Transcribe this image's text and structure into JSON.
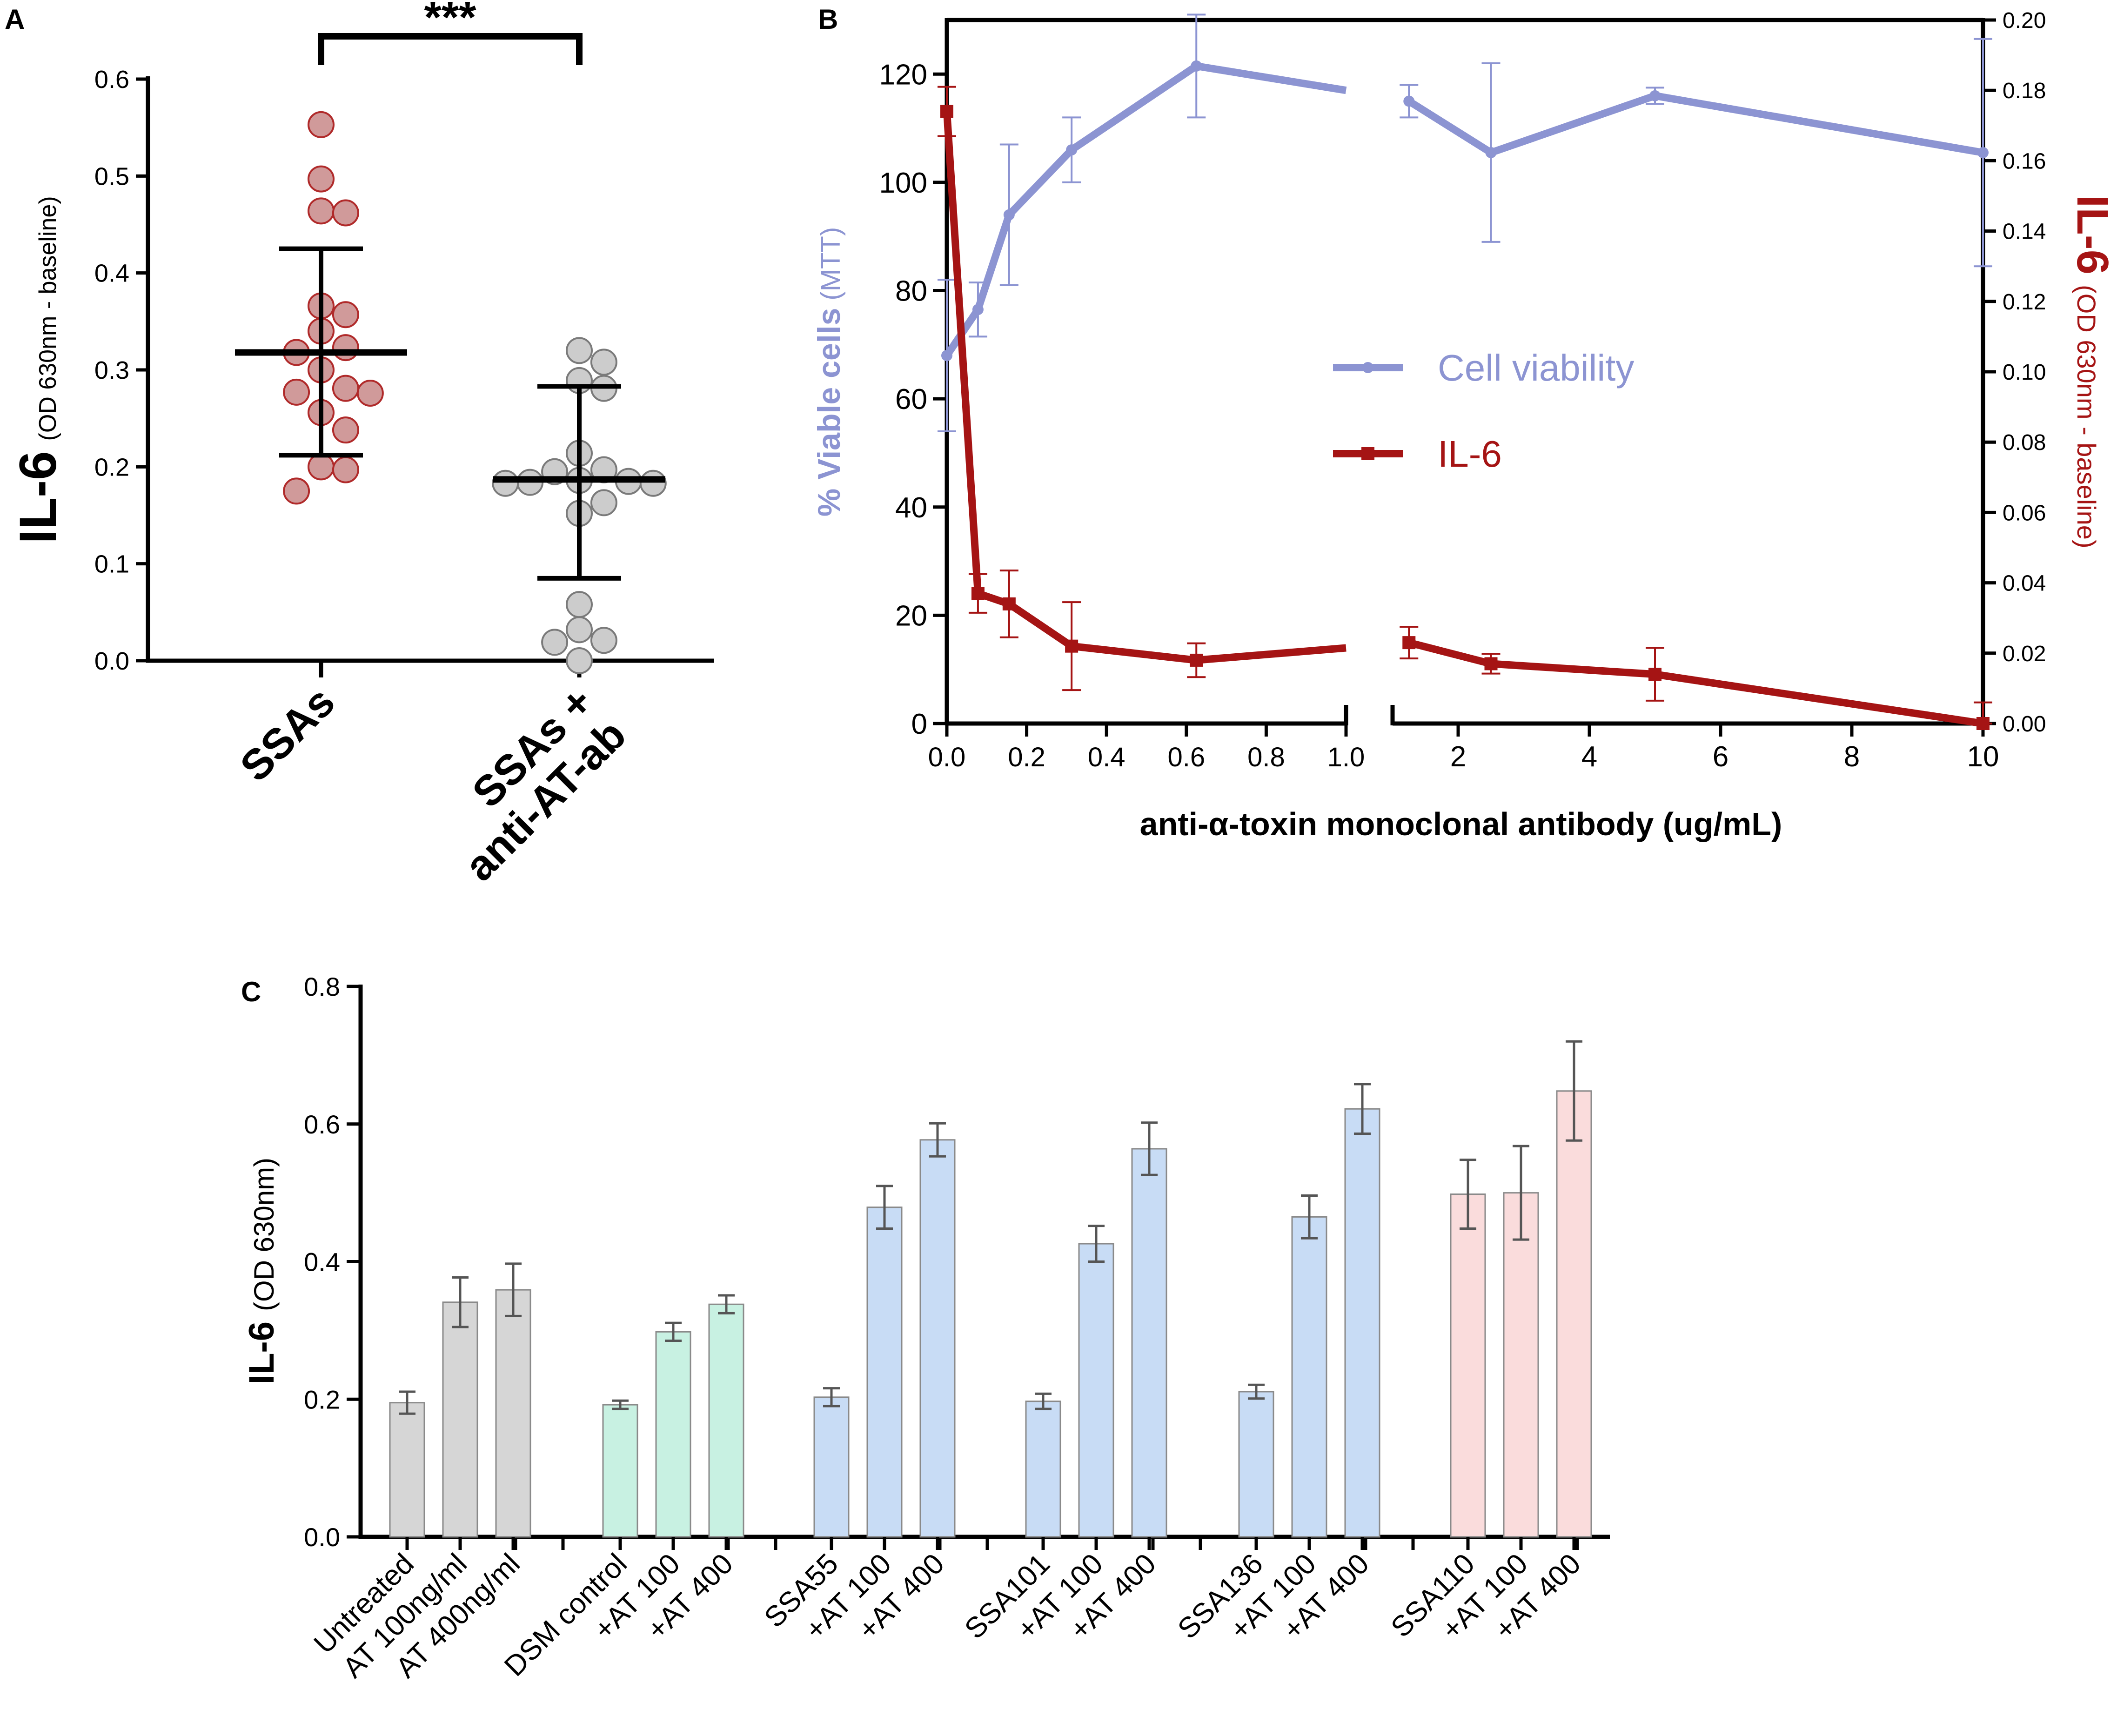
{
  "chart_data": [
    {
      "panel": "A",
      "type": "scatter",
      "title": "",
      "ylabel_main": "IL-6",
      "ylabel_sub": "(OD 630nm - baseline)",
      "ylim": [
        0.0,
        0.6
      ],
      "yticks": [
        "0.0",
        "0.1",
        "0.2",
        "0.3",
        "0.4",
        "0.5",
        "0.6"
      ],
      "significance": "***",
      "reference_line_y": 0.0,
      "groups": [
        {
          "name": "SSAs",
          "label_lines": [
            "SSAs"
          ],
          "fill": "#d09a9a",
          "stroke": "#b02a2a",
          "mean": 0.318,
          "sd_low": 0.212,
          "sd_high": 0.425,
          "points": [
            0.553,
            0.497,
            0.464,
            0.462,
            0.366,
            0.357,
            0.34,
            0.323,
            0.318,
            0.3,
            0.281,
            0.277,
            0.276,
            0.256,
            0.238,
            0.2,
            0.197,
            0.175
          ]
        },
        {
          "name": "SSAs + anti-AT-ab",
          "label_lines": [
            "SSAs +",
            "anti-AT-ab"
          ],
          "fill": "#cccccc",
          "stroke": "#7a7a7a",
          "mean": 0.187,
          "sd_low": 0.085,
          "sd_high": 0.283,
          "points": [
            0.32,
            0.308,
            0.289,
            0.281,
            0.214,
            0.197,
            0.195,
            0.185,
            0.183,
            0.184,
            0.186,
            0.183,
            0.163,
            0.152,
            0.058,
            0.032,
            0.021,
            0.019,
            0.0
          ]
        }
      ]
    },
    {
      "panel": "B",
      "type": "line",
      "title": "",
      "xlabel": "anti-α-toxin monoclonal antibody (ug/mL)",
      "ylabel_left_bold": "% Viable cells",
      "ylabel_left_sub": "(MTT)",
      "ylabel_right_bold": "IL-6",
      "ylabel_right_sub": "(OD 630nm - baseline)",
      "ylim_left": [
        0,
        130
      ],
      "ylim_right": [
        0,
        0.2
      ],
      "yticks_left": [
        "0",
        "20",
        "40",
        "60",
        "80",
        "100",
        "120"
      ],
      "yticks_right": [
        "0.00",
        "0.02",
        "0.04",
        "0.06",
        "0.08",
        "0.10",
        "0.12",
        "0.14",
        "0.16",
        "0.18",
        "0.20"
      ],
      "x_segment1_range": [
        0.0,
        1.0
      ],
      "x_segment1_ticks": [
        "0.0",
        "0.2",
        "0.4",
        "0.6",
        "0.8",
        "1.0"
      ],
      "x_segment2_range": [
        1.0,
        10
      ],
      "x_segment2_ticks": [
        "2",
        "4",
        "6",
        "8",
        "10"
      ],
      "legend_position": "center-right",
      "series": [
        {
          "name": "Cell viability",
          "axis": "left",
          "color": "#8c94d2",
          "marker": "circle",
          "x": [
            0.0,
            0.078,
            0.156,
            0.3125,
            0.625,
            1.25,
            2.5,
            5.0,
            10.0
          ],
          "y": [
            68,
            76.5,
            94,
            106,
            121.5,
            115,
            105.5,
            116,
            105.5
          ],
          "err": [
            14,
            5,
            13,
            6,
            9.5,
            3,
            16.5,
            1.5,
            21
          ],
          "gap_point_left": 117
        },
        {
          "name": "IL-6",
          "axis": "right",
          "color": "#a51414",
          "marker": "square",
          "x": [
            0.0,
            0.078,
            0.156,
            0.3125,
            0.625,
            1.25,
            2.5,
            5.0,
            10.0
          ],
          "y": [
            0.174,
            0.037,
            0.034,
            0.022,
            0.018,
            0.023,
            0.017,
            0.014,
            0.0
          ],
          "err": [
            0.007,
            0.0055,
            0.0095,
            0.0125,
            0.0048,
            0.0045,
            0.0028,
            0.0075,
            0.006
          ],
          "gap_point_left": 0.0215
        }
      ]
    },
    {
      "panel": "C",
      "type": "bar",
      "title": "",
      "ylabel_main": "IL-6",
      "ylabel_sub": "(OD 630nm)",
      "ylim": [
        0.0,
        0.8
      ],
      "yticks": [
        "0.0",
        "0.2",
        "0.4",
        "0.6",
        "0.8"
      ],
      "groups": [
        {
          "name": "Untreated",
          "bar_color": "#d6d6d6",
          "bars": [
            {
              "label": "Untreated",
              "value": 0.195,
              "err": 0.016
            },
            {
              "label": "AT 100ng/ml",
              "value": 0.341,
              "err": 0.036
            },
            {
              "label": "AT 400ng/ml",
              "value": 0.359,
              "err": 0.038
            }
          ]
        },
        {
          "name": "DSM control",
          "bar_color": "#c8f1e2",
          "bars": [
            {
              "label": "DSM control",
              "value": 0.192,
              "err": 0.006
            },
            {
              "label": "+AT 100",
              "value": 0.298,
              "err": 0.013
            },
            {
              "label": "+AT 400",
              "value": 0.338,
              "err": 0.013
            }
          ]
        },
        {
          "name": "SSA55",
          "bar_color": "#c8dcf5",
          "bars": [
            {
              "label": "SSA55",
              "value": 0.203,
              "err": 0.013
            },
            {
              "label": "+AT 100",
              "value": 0.479,
              "err": 0.031
            },
            {
              "label": "+AT 400",
              "value": 0.577,
              "err": 0.024
            }
          ]
        },
        {
          "name": "SSA101",
          "bar_color": "#c8dcf5",
          "bars": [
            {
              "label": "SSA101",
              "value": 0.197,
              "err": 0.011
            },
            {
              "label": "+AT 100",
              "value": 0.426,
              "err": 0.026
            },
            {
              "label": "+AT 400",
              "value": 0.564,
              "err": 0.038
            }
          ]
        },
        {
          "name": "SSA136",
          "bar_color": "#c8dcf5",
          "bars": [
            {
              "label": "SSA136",
              "value": 0.211,
              "err": 0.01
            },
            {
              "label": "+AT 100",
              "value": 0.465,
              "err": 0.031
            },
            {
              "label": "+AT 400",
              "value": 0.622,
              "err": 0.036
            }
          ]
        },
        {
          "name": "SSA110",
          "bar_color": "#fadcdc",
          "bars": [
            {
              "label": "SSA110",
              "value": 0.498,
              "err": 0.05
            },
            {
              "label": "+AT 100",
              "value": 0.5,
              "err": 0.068
            },
            {
              "label": "+AT 400",
              "value": 0.648,
              "err": 0.072
            }
          ]
        }
      ]
    }
  ],
  "panel_letters": [
    "A",
    "B",
    "C"
  ]
}
